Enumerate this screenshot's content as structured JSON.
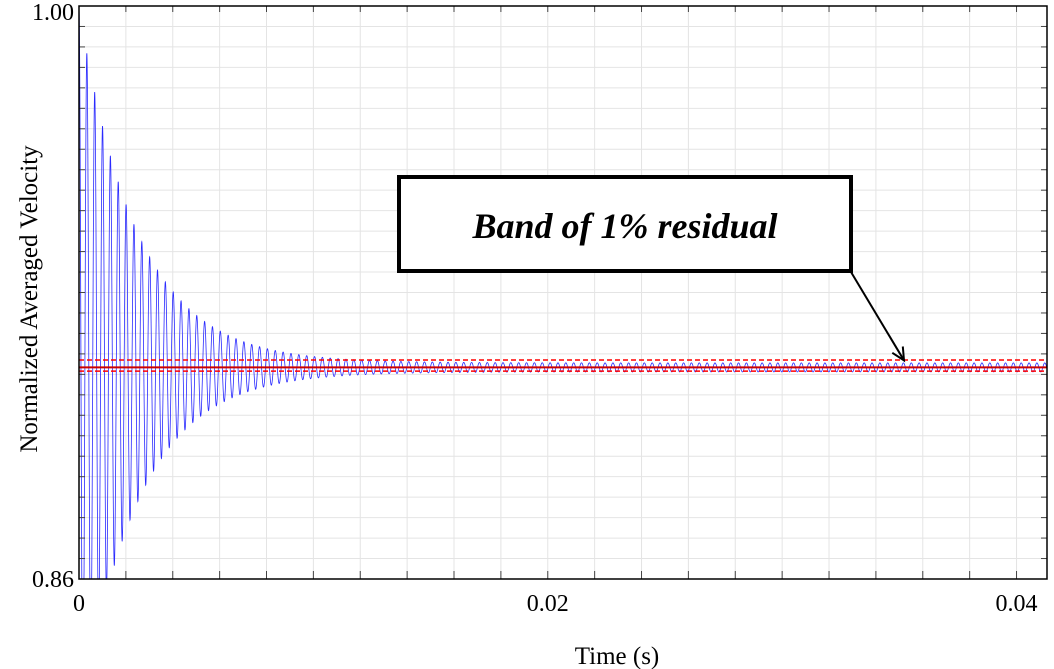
{
  "chart_data": {
    "type": "line",
    "xlabel": "Time (s)",
    "ylabel": "Normalized Averaged Velocity",
    "xlim": [
      0,
      0.0413
    ],
    "ylim": [
      0.86,
      1.0
    ],
    "x_tick_labels": [
      {
        "value": 0,
        "label": "0"
      },
      {
        "value": 0.02,
        "label": "0.02"
      },
      {
        "value": 0.04,
        "label": "0.04"
      }
    ],
    "y_tick_labels": [
      {
        "value": 1.0,
        "label": "1.00"
      },
      {
        "value": 0.86,
        "label": "0.86"
      }
    ],
    "x_minor_step": 0.002,
    "y_minor_step": 0.005,
    "grid": true,
    "series": [
      {
        "kind": "damped-oscillation",
        "color": "#2a2aff",
        "mean": 0.9117,
        "initial_amplitude": 0.0865,
        "decay_time_s": 0.0025,
        "residual_amplitude": 0.0011,
        "period_s": 0.000335,
        "x_range": [
          0,
          0.0413
        ]
      }
    ],
    "bands": [
      {
        "kind": "solid",
        "color": "#cc0000",
        "y": 0.9117
      },
      {
        "kind": "dashed",
        "color": "#ff0000",
        "y": 0.9135
      },
      {
        "kind": "dashed",
        "color": "#ff0000",
        "y": 0.9108
      }
    ],
    "annotation": {
      "text": "Band of 1% residual",
      "arrow_target": {
        "x": 0.0352,
        "y": 0.9134
      }
    }
  }
}
